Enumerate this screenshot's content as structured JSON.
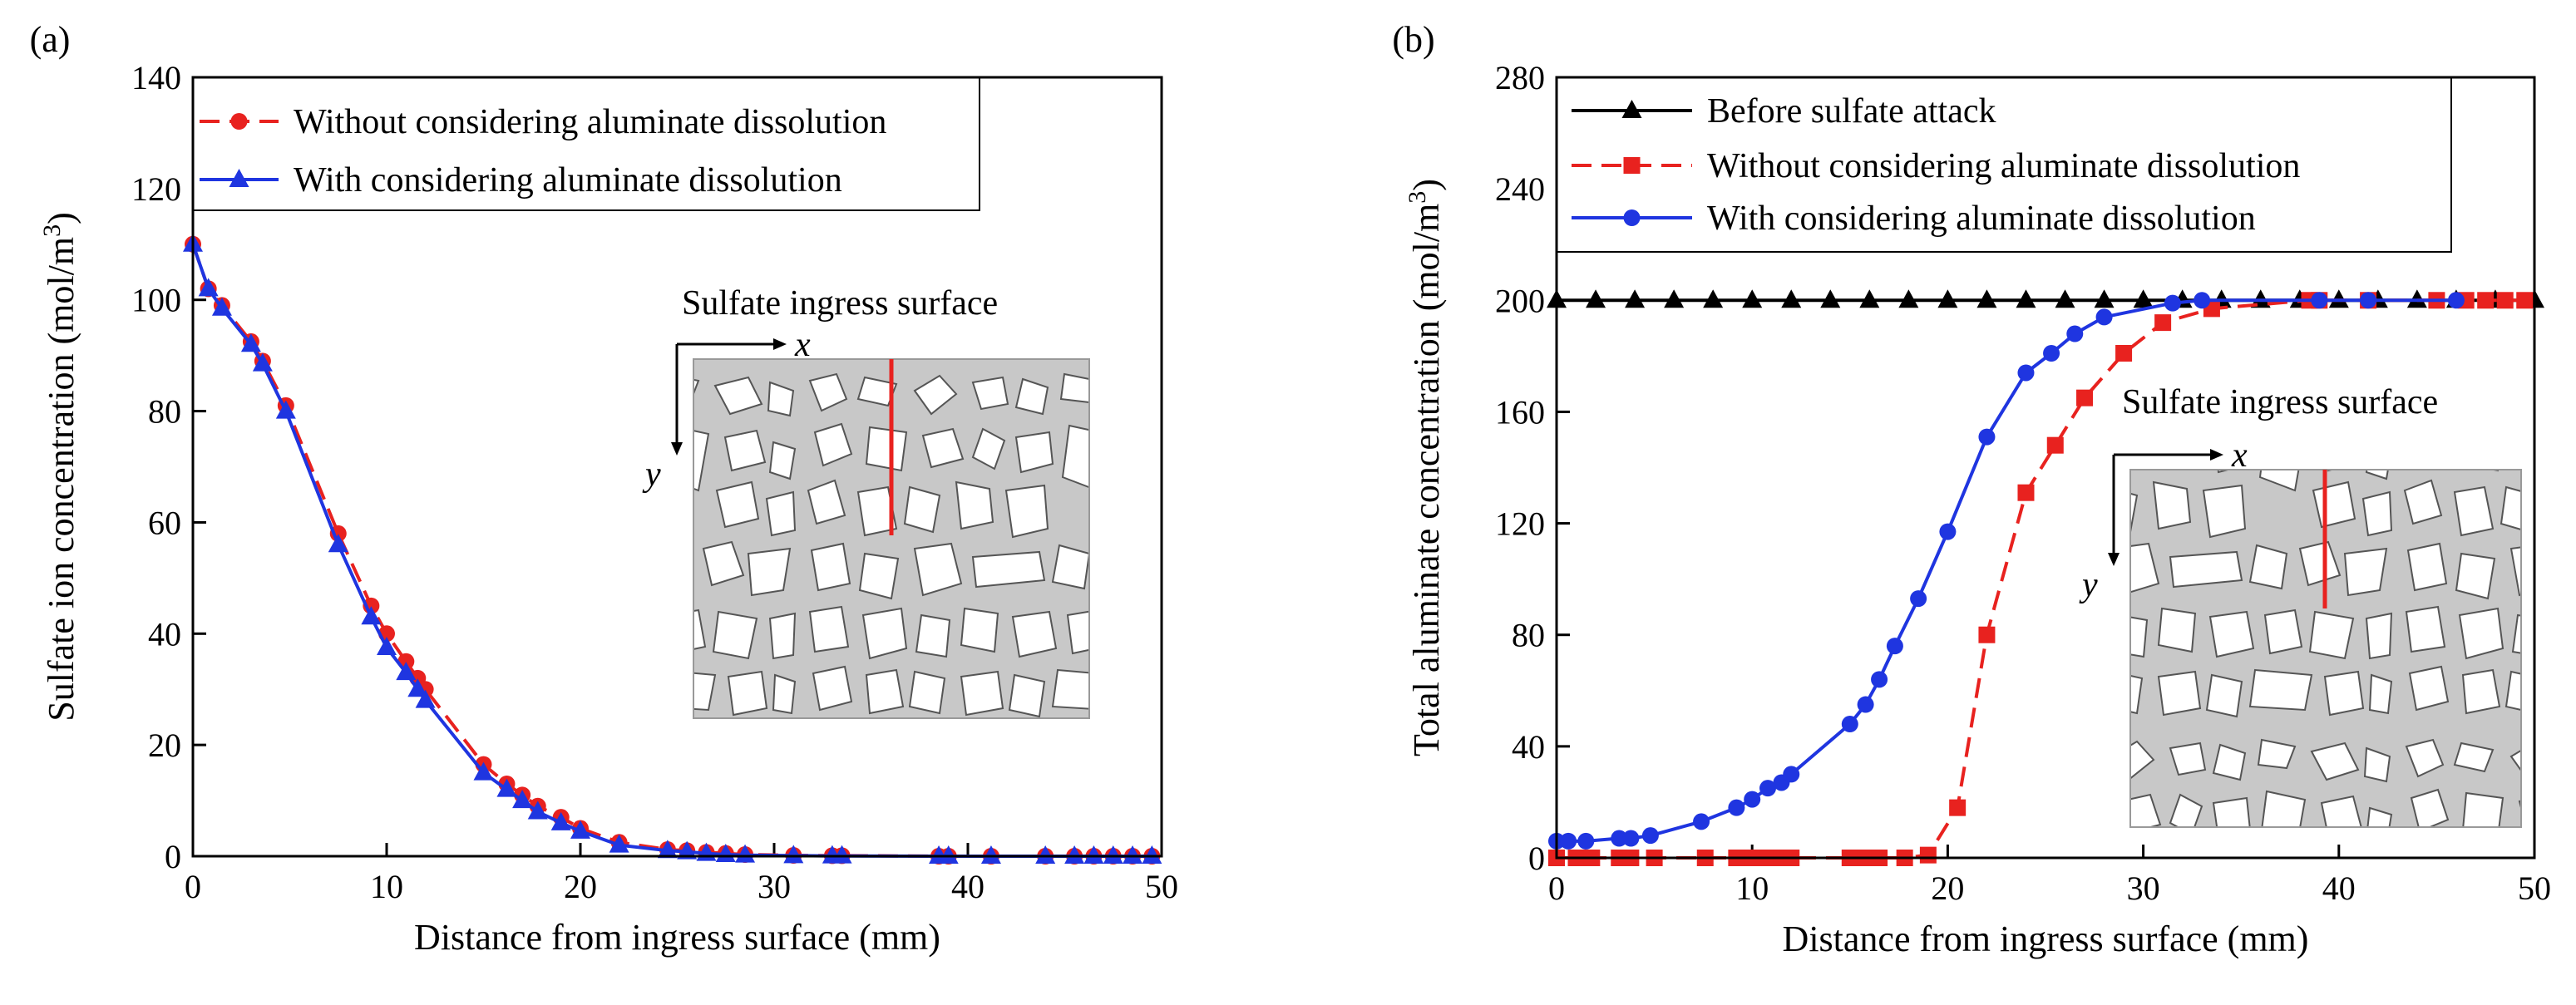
{
  "chart_data": [
    {
      "type": "line",
      "panel_label": "(a)",
      "xlabel": "Distance from ingress surface (mm)",
      "ylabel_main": "Sulfate ion concentration (mol/m",
      "ylabel_sup": "3",
      "ylabel_end": ")",
      "xlim": [
        0,
        50
      ],
      "ylim": [
        0,
        140
      ],
      "xticks": [
        0,
        10,
        20,
        30,
        40,
        50
      ],
      "yticks": [
        0,
        20,
        40,
        60,
        80,
        100,
        120,
        140
      ],
      "legend_position": "top-left",
      "inset_title": "Sulfate ingress surface",
      "inset_x_axis": "x",
      "inset_y_axis": "y",
      "series": [
        {
          "name": "Without considering aluminate dissolution",
          "color": "#e8221f",
          "style": "dashed",
          "marker": "circle",
          "x": [
            0,
            0.8,
            1.5,
            3.0,
            3.6,
            4.8,
            7.5,
            9.2,
            10.0,
            11.0,
            11.6,
            12.0,
            15.0,
            16.2,
            17.0,
            17.8,
            19.0,
            20.0,
            22.0,
            24.5,
            25.5,
            26.5,
            27.5,
            28.5,
            31.0,
            33.0,
            33.5,
            38.5,
            39.0,
            41.2,
            44.0,
            45.5,
            46.5,
            47.5,
            48.5,
            49.5
          ],
          "y": [
            110,
            102,
            99,
            92.5,
            89,
            81,
            58,
            45,
            40,
            35,
            32,
            30,
            16.5,
            13,
            11,
            9,
            7,
            5,
            2.5,
            1.2,
            1,
            0.7,
            0.5,
            0.3,
            0.15,
            0.1,
            0.1,
            0,
            0,
            0,
            0,
            0,
            0,
            0,
            0,
            0
          ]
        },
        {
          "name": "With considering aluminate dissolution",
          "color": "#1f35e0",
          "style": "solid",
          "marker": "triangle",
          "x": [
            0,
            0.8,
            1.5,
            3.0,
            3.6,
            4.8,
            7.5,
            9.2,
            10.0,
            11.0,
            11.6,
            12.0,
            15.0,
            16.2,
            17.0,
            17.8,
            19.0,
            20.0,
            22.0,
            24.5,
            25.5,
            26.5,
            27.5,
            28.5,
            31.0,
            33.0,
            33.5,
            38.5,
            39.0,
            41.2,
            44.0,
            45.5,
            46.5,
            47.5,
            48.5,
            49.5
          ],
          "y": [
            110,
            102,
            98.5,
            92,
            88.5,
            80,
            56,
            43,
            37.5,
            33,
            30,
            28,
            15,
            12,
            10,
            8,
            6,
            4.5,
            2,
            1,
            0.8,
            0.5,
            0.3,
            0.2,
            0.1,
            0.05,
            0.05,
            0,
            0,
            0,
            0,
            0,
            0,
            0,
            0,
            0
          ]
        }
      ]
    },
    {
      "type": "line",
      "panel_label": "(b)",
      "xlabel": "Distance from ingress surface (mm)",
      "ylabel_main": "Total aluminate concentration (mol/m",
      "ylabel_sup": "3",
      "ylabel_end": ")",
      "xlim": [
        0,
        50
      ],
      "ylim": [
        0,
        280
      ],
      "xticks": [
        0,
        10,
        20,
        30,
        40,
        50
      ],
      "yticks": [
        0,
        40,
        80,
        120,
        160,
        200,
        240,
        280
      ],
      "legend_position": "top-left",
      "inset_title": "Sulfate ingress surface",
      "inset_x_axis": "x",
      "inset_y_axis": "y",
      "series": [
        {
          "name": "Before sulfate attack",
          "color": "#000000",
          "style": "solid",
          "marker": "triangle",
          "x": [
            0,
            2,
            4,
            6,
            8,
            10,
            12,
            14,
            16,
            18,
            20,
            22,
            24,
            26,
            28,
            30,
            32,
            34,
            36,
            38,
            40,
            42,
            44,
            46,
            48,
            50
          ],
          "y": [
            200,
            200,
            200,
            200,
            200,
            200,
            200,
            200,
            200,
            200,
            200,
            200,
            200,
            200,
            200,
            200,
            200,
            200,
            200,
            200,
            200,
            200,
            200,
            200,
            200,
            200
          ]
        },
        {
          "name": "Without considering aluminate dissolution",
          "color": "#e8221f",
          "style": "dashed",
          "marker": "square",
          "x": [
            0,
            1,
            1.8,
            3.2,
            3.8,
            5.0,
            7.6,
            9.2,
            10.0,
            10.8,
            11.5,
            12.0,
            15.0,
            15.8,
            16.5,
            17.8,
            19.0,
            20.5,
            22.0,
            24.0,
            25.5,
            27.0,
            29.0,
            31.0,
            33.5,
            38.5,
            39.0,
            41.5,
            45.0,
            46.5,
            47.5,
            48.5,
            49.5
          ],
          "y": [
            0,
            0,
            0,
            0,
            0,
            0,
            0,
            0,
            0,
            0,
            0,
            0,
            0,
            0,
            0,
            0,
            1,
            18,
            80,
            131,
            148,
            165,
            181,
            192,
            197,
            200,
            200,
            200,
            200,
            200,
            200,
            200,
            200
          ]
        },
        {
          "name": "With considering aluminate dissolution",
          "color": "#1f35e0",
          "style": "solid",
          "marker": "circle",
          "x": [
            0,
            0.6,
            1.5,
            3.2,
            3.8,
            4.8,
            7.4,
            9.2,
            10.0,
            10.8,
            11.5,
            12.0,
            15.0,
            15.8,
            16.5,
            17.3,
            18.5,
            20.0,
            22.0,
            24.0,
            25.3,
            26.5,
            28.0,
            31.5,
            33.0,
            39.0,
            41.5,
            46.0
          ],
          "y": [
            6,
            6,
            6,
            7,
            7,
            8,
            13,
            18,
            21,
            25,
            27,
            30,
            48,
            55,
            64,
            76,
            93,
            117,
            151,
            174,
            181,
            188,
            194,
            199,
            200,
            200,
            200,
            200
          ]
        }
      ]
    }
  ]
}
